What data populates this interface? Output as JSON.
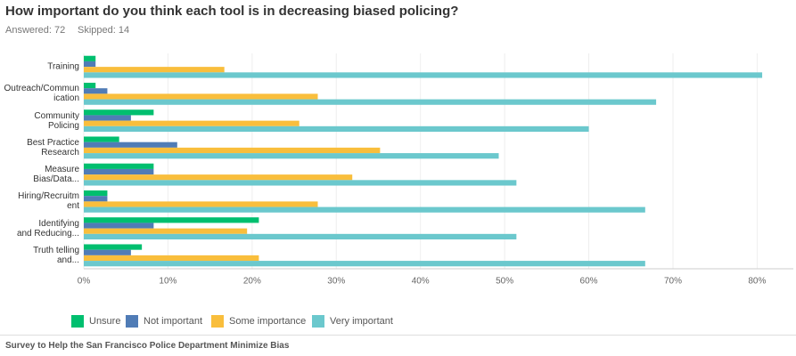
{
  "chart_data": {
    "type": "hbar",
    "title": "How important do you think each tool is in decreasing biased policing?",
    "answered": "Answered: 72",
    "skipped": "Skipped: 14",
    "footer": "Survey to Help the San Francisco Police Department Minimize Bias",
    "categories": [
      "Training",
      "Outreach/Commun\nication",
      "Community\nPolicing",
      "Best Practice\nResearch",
      "Measure\nBias/Data...",
      "Hiring/Recruitm\nent",
      "Identifying\nand Reducing...",
      "Truth telling\nand..."
    ],
    "series": [
      {
        "name": "Unsure",
        "color": "#00bf6f",
        "values": [
          1.4,
          1.4,
          8.3,
          4.2,
          8.3,
          2.8,
          20.8,
          6.9
        ]
      },
      {
        "name": "Not important",
        "color": "#507cb6",
        "values": [
          1.4,
          2.8,
          5.6,
          11.1,
          8.3,
          2.8,
          8.3,
          5.6
        ]
      },
      {
        "name": "Some importance",
        "color": "#f9be3c",
        "values": [
          16.7,
          27.8,
          25.6,
          35.2,
          31.9,
          27.8,
          19.4,
          20.8
        ]
      },
      {
        "name": "Very important",
        "color": "#6bc8cd",
        "values": [
          80.6,
          68,
          60,
          49.3,
          51.4,
          66.7,
          51.4,
          66.7
        ]
      }
    ],
    "xlim": [
      0,
      84.3
    ],
    "xticks": [
      {
        "value": 0,
        "label": "0%"
      },
      {
        "value": 10,
        "label": "10%"
      },
      {
        "value": 20,
        "label": "20%"
      },
      {
        "value": 30,
        "label": "30%"
      },
      {
        "value": 40,
        "label": "40%"
      },
      {
        "value": 50,
        "label": "50%"
      },
      {
        "value": 60,
        "label": "60%"
      },
      {
        "value": 70,
        "label": "70%"
      },
      {
        "value": 80,
        "label": "80%"
      }
    ],
    "grid": true
  }
}
